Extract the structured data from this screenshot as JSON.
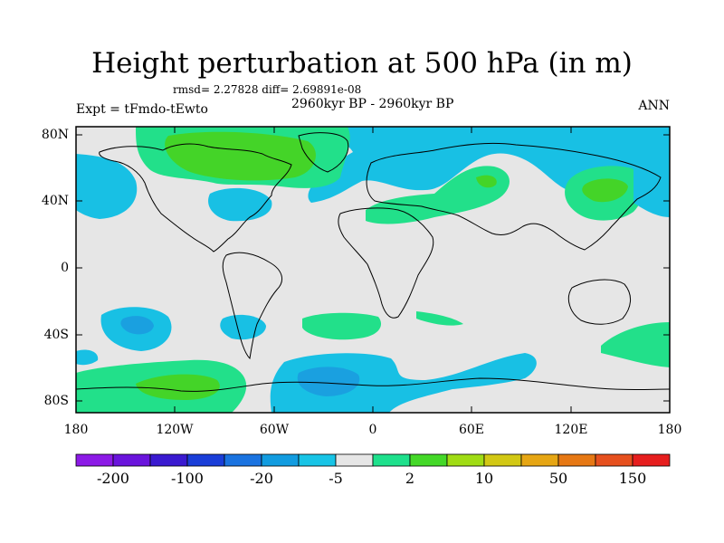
{
  "title": "Height perturbation at 500 hPa (in m)",
  "stats_text": "rmsd= 2.27828 diff= 2.69891e-08",
  "period_text": "2960kyr BP - 2960kyr BP",
  "experiment_text": "Expt = tFmdo-tEwto",
  "season_text": "ANN",
  "lat_labels": [
    "80N",
    "40N",
    "0",
    "40S",
    "80S"
  ],
  "lon_labels": [
    "180",
    "120W",
    "60W",
    "0",
    "60E",
    "120E",
    "180"
  ],
  "colorbar": {
    "labels": [
      "-200",
      "-100",
      "-20",
      "-5",
      "2",
      "10",
      "50",
      "150"
    ],
    "colors": [
      "#8c1ae6",
      "#6a14dc",
      "#3a1ad0",
      "#1a3ed8",
      "#1a73e0",
      "#129ce0",
      "#18c4e6",
      "#e6e6e6",
      "#1ee08c",
      "#44d828",
      "#a0dc14",
      "#d2c814",
      "#e6a614",
      "#e67814",
      "#e6501e",
      "#e61e1e"
    ]
  },
  "map_colors": {
    "background": "#e6e6e6",
    "neg_light": "#18c0e4",
    "neg_mid": "#1aa0e0",
    "pos_light": "#22e08a",
    "pos_mid": "#44d428"
  }
}
